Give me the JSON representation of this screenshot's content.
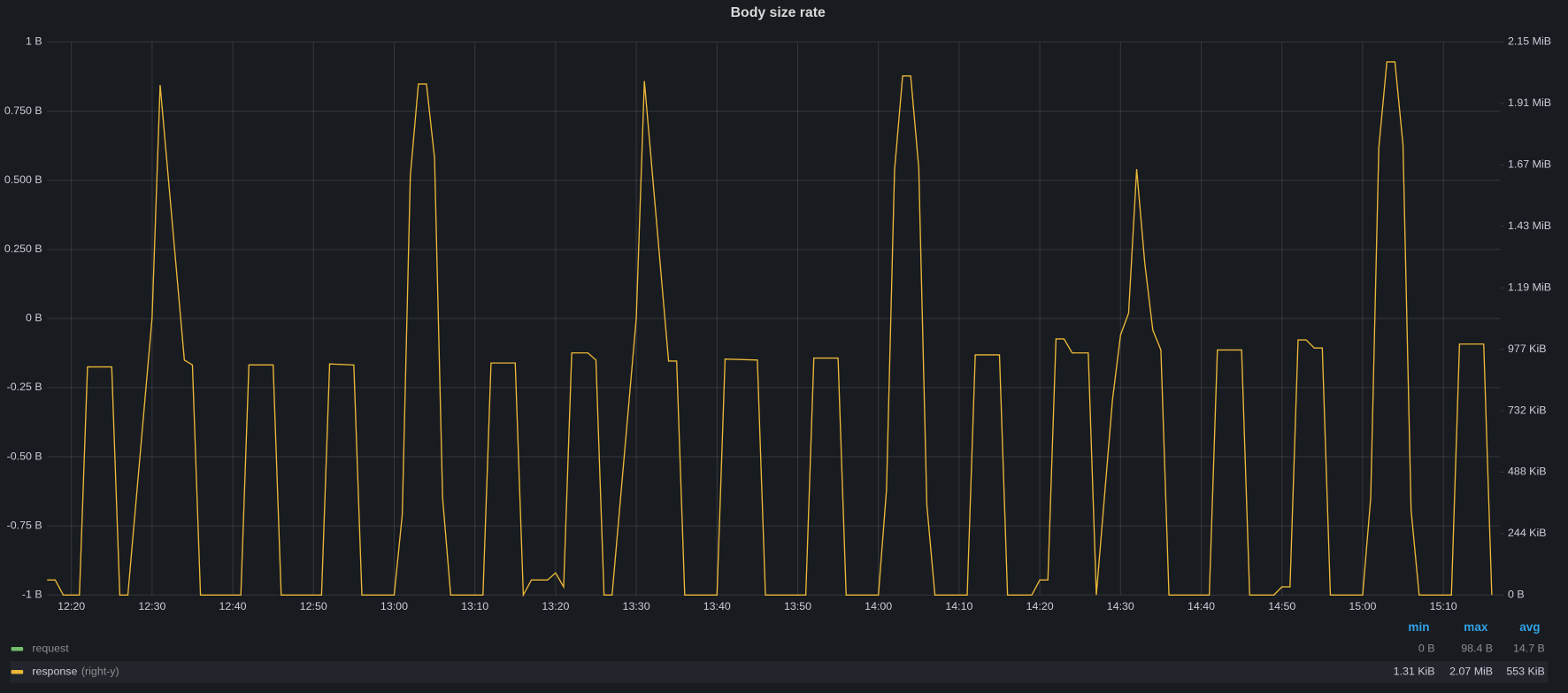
{
  "chart_data": {
    "type": "line",
    "title": "Body size rate",
    "x": [
      "12:17",
      "12:18",
      "12:19",
      "12:21",
      "12:22",
      "12:25",
      "12:26",
      "12:27",
      "12:30",
      "12:31",
      "12:34",
      "12:35",
      "12:36",
      "12:41",
      "12:42",
      "12:45",
      "12:46",
      "12:51",
      "12:52",
      "12:55",
      "12:56",
      "13:00",
      "13:01",
      "13:02",
      "13:03",
      "13:04",
      "13:05",
      "13:06",
      "13:07",
      "13:11",
      "13:12",
      "13:15",
      "13:16",
      "13:17",
      "13:19",
      "13:20",
      "13:21",
      "13:22",
      "13:24",
      "13:25",
      "13:26",
      "13:27",
      "13:30",
      "13:31",
      "13:34",
      "13:35",
      "13:36",
      "13:40",
      "13:41",
      "13:45",
      "13:46",
      "13:51",
      "13:52",
      "13:55",
      "13:56",
      "14:00",
      "14:01",
      "14:02",
      "14:03",
      "14:04",
      "14:05",
      "14:06",
      "14:07",
      "14:11",
      "14:12",
      "14:15",
      "14:16",
      "14:19",
      "14:20",
      "14:21",
      "14:22",
      "14:23",
      "14:24",
      "14:26",
      "14:27",
      "14:29",
      "14:30",
      "14:31",
      "14:32",
      "14:33",
      "14:34",
      "14:35",
      "14:36",
      "14:41",
      "14:42",
      "14:45",
      "14:46",
      "14:49",
      "14:50",
      "14:51",
      "14:52",
      "14:53",
      "14:54",
      "14:55",
      "14:56",
      "15:00",
      "15:01",
      "15:02",
      "15:03",
      "15:04",
      "15:05",
      "15:06",
      "15:07",
      "15:11",
      "15:12",
      "15:15",
      "15:16"
    ],
    "xlim": [
      "12:17",
      "15:17"
    ],
    "xticks": [
      "12:20",
      "12:30",
      "12:40",
      "12:50",
      "13:00",
      "13:10",
      "13:20",
      "13:30",
      "13:40",
      "13:50",
      "14:00",
      "14:10",
      "14:20",
      "14:30",
      "14:40",
      "14:50",
      "15:00",
      "15:10"
    ],
    "ylim": [
      -1,
      1
    ],
    "yticks": [
      {
        "value": -1,
        "label": "-1 B"
      },
      {
        "value": -0.75,
        "label": "-0.75 B"
      },
      {
        "value": -0.5,
        "label": "-0.50 B"
      },
      {
        "value": -0.25,
        "label": "-0.25 B"
      },
      {
        "value": 0,
        "label": "0 B"
      },
      {
        "value": 0.25,
        "label": "0.250 B"
      },
      {
        "value": 0.5,
        "label": "0.500 B"
      },
      {
        "value": 0.75,
        "label": "0.750 B"
      },
      {
        "value": 1,
        "label": "1 B"
      }
    ],
    "y2lim": [
      0,
      2250000
    ],
    "y2ticks": [
      {
        "value": 0,
        "label": "0 B"
      },
      {
        "value": 250000,
        "label": "244 KiB"
      },
      {
        "value": 500000,
        "label": "488 KiB"
      },
      {
        "value": 750000,
        "label": "732 KiB"
      },
      {
        "value": 1000000,
        "label": "977 KiB"
      },
      {
        "value": 1250000,
        "label": "1.19 MiB"
      },
      {
        "value": 1500000,
        "label": "1.43 MiB"
      },
      {
        "value": 1750000,
        "label": "1.67 MiB"
      },
      {
        "value": 2000000,
        "label": "1.91 MiB"
      },
      {
        "value": 2250000,
        "label": "2.15 MiB"
      }
    ],
    "grid": true,
    "legend_columns": [
      "min",
      "max",
      "avg"
    ],
    "series": [
      {
        "name": "request",
        "color": "#73bf69",
        "stats": [
          "0 B",
          "98.4 B",
          "14.7 B"
        ]
      },
      {
        "name": "response",
        "legend_suffix": "(right-y)",
        "color": "#eab839",
        "axis": "y2",
        "stats": [
          "1.31 KiB",
          "2.07 MiB",
          "553 KiB"
        ],
        "values": [
          61000,
          61000,
          0,
          0,
          928000,
          928000,
          0,
          0,
          1127000,
          2075000,
          956000,
          936000,
          0,
          0,
          936000,
          936000,
          0,
          0,
          940000,
          936000,
          0,
          0,
          326000,
          1705000,
          2079000,
          2079000,
          1778000,
          395000,
          0,
          0,
          944000,
          944000,
          0,
          61000,
          61000,
          90000,
          33000,
          985000,
          985000,
          956000,
          0,
          0,
          1127000,
          2091000,
          952000,
          952000,
          0,
          0,
          960000,
          956000,
          0,
          0,
          964000,
          964000,
          0,
          0,
          427000,
          1729000,
          2112000,
          2112000,
          1737000,
          366000,
          0,
          0,
          977000,
          977000,
          0,
          0,
          61000,
          61000,
          1042000,
          1042000,
          985000,
          985000,
          0,
          793000,
          1058000,
          1147000,
          1733000,
          1351000,
          1078000,
          997000,
          0,
          0,
          997000,
          997000,
          0,
          0,
          33000,
          33000,
          1038000,
          1038000,
          1005000,
          1005000,
          0,
          0,
          395000,
          1819000,
          2169000,
          2169000,
          1831000,
          346000,
          0,
          0,
          1021000,
          1021000,
          0
        ]
      }
    ]
  }
}
